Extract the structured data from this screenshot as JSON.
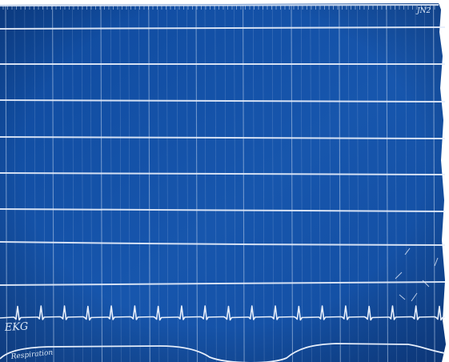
{
  "print": {
    "background_color": "#1552a6",
    "trace_color": "#e6eefb",
    "grid_color": "#b9cdea",
    "corner_mark": "JN2",
    "labels": {
      "ekg": "EKG",
      "respiration": "Respiration"
    },
    "ekg_beat_count": 19
  }
}
